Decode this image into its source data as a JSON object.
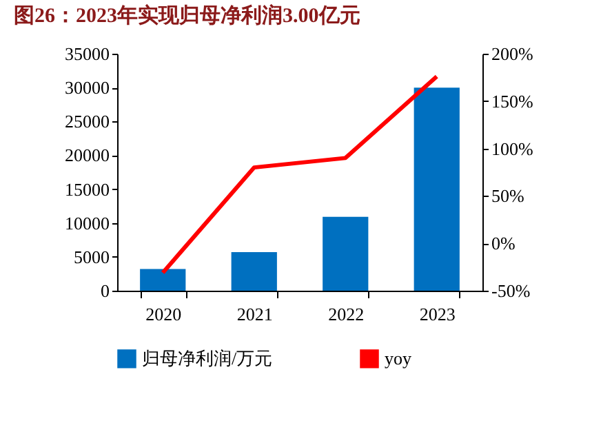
{
  "chart_data": {
    "type": "bar",
    "title": "图26：2023年实现归母净利润3.00亿元",
    "categories": [
      "2020",
      "2021",
      "2022",
      "2023"
    ],
    "series": [
      {
        "name": "归母净利润/万元",
        "color": "#0070c0",
        "values": [
          3200,
          5700,
          10900,
          30000
        ]
      },
      {
        "name": "yoy",
        "type": "line",
        "axis": "y2",
        "color": "#ff0000",
        "values": [
          -31,
          80,
          90,
          176
        ]
      }
    ],
    "ylim": [
      0,
      35000
    ],
    "yticks": [
      0,
      5000,
      10000,
      15000,
      20000,
      25000,
      30000,
      35000
    ],
    "y2lim": [
      -50,
      200
    ],
    "y2ticks": [
      {
        "value": -50,
        "label": "-50%"
      },
      {
        "value": 0,
        "label": "0%"
      },
      {
        "value": 50,
        "label": "50%"
      },
      {
        "value": 100,
        "label": "100%"
      },
      {
        "value": 150,
        "label": "150%"
      },
      {
        "value": 200,
        "label": "200%"
      }
    ],
    "legend": "bottom",
    "grid": false
  }
}
